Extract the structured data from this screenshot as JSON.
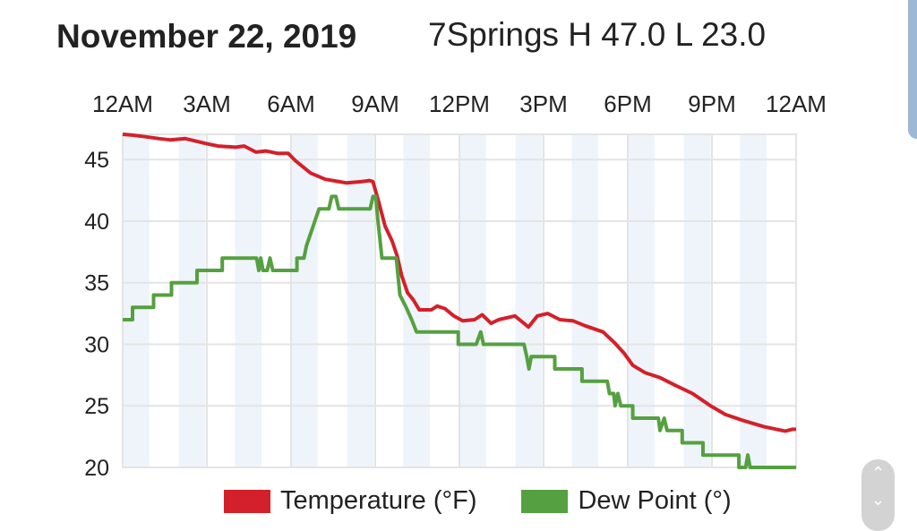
{
  "header": {
    "date": "November 22, 2019",
    "station": "7Springs H 47.0 L 23.0"
  },
  "colors": {
    "temperature": "#d4202a",
    "dew_point": "#55a040",
    "band": "#eef4fa",
    "grid": "#e4e4e4"
  },
  "chart_data": {
    "type": "line",
    "title": "November 22, 2019 7Springs H 47.0 L 23.0",
    "x_unit": "hours since midnight",
    "xlim": [
      0,
      24
    ],
    "ylim": [
      20,
      47.05
    ],
    "x_ticks": [
      {
        "value": 0,
        "label": "12AM"
      },
      {
        "value": 3,
        "label": "3AM"
      },
      {
        "value": 6,
        "label": "6AM"
      },
      {
        "value": 9,
        "label": "9AM"
      },
      {
        "value": 12,
        "label": "12PM"
      },
      {
        "value": 15,
        "label": "3PM"
      },
      {
        "value": 18,
        "label": "6PM"
      },
      {
        "value": 21,
        "label": "9PM"
      },
      {
        "value": 24,
        "label": "12AM"
      }
    ],
    "y_ticks": [
      20,
      25,
      30,
      35,
      40,
      45
    ],
    "x_tick_position": "top",
    "grid": true,
    "legend_position": "bottom",
    "series": [
      {
        "name": "Temperature (°F)",
        "color": "#d4202a",
        "points": [
          [
            0,
            47.05
          ],
          [
            0.3,
            47.0
          ],
          [
            0.84,
            46.85
          ],
          [
            1.3,
            46.7
          ],
          [
            1.69,
            46.6
          ],
          [
            2.23,
            46.7
          ],
          [
            2.97,
            46.3
          ],
          [
            3.4,
            46.1
          ],
          [
            4.02,
            46.0
          ],
          [
            4.33,
            46.1
          ],
          [
            4.75,
            45.6
          ],
          [
            5.1,
            45.7
          ],
          [
            5.52,
            45.5
          ],
          [
            5.9,
            45.5
          ],
          [
            6.16,
            44.9
          ],
          [
            6.7,
            43.9
          ],
          [
            7.22,
            43.4
          ],
          [
            7.98,
            43.1
          ],
          [
            8.5,
            43.2
          ],
          [
            8.8,
            43.3
          ],
          [
            8.92,
            43.2
          ],
          [
            9.13,
            41.5
          ],
          [
            9.35,
            39.6
          ],
          [
            9.6,
            38.4
          ],
          [
            9.78,
            37.2
          ],
          [
            9.94,
            35.6
          ],
          [
            10.15,
            34.2
          ],
          [
            10.36,
            33.6
          ],
          [
            10.57,
            32.8
          ],
          [
            11.0,
            32.8
          ],
          [
            11.21,
            33.1
          ],
          [
            11.48,
            32.9
          ],
          [
            11.8,
            32.3
          ],
          [
            12.12,
            31.9
          ],
          [
            12.54,
            32.0
          ],
          [
            12.81,
            32.4
          ],
          [
            13.13,
            31.7
          ],
          [
            13.4,
            32.0
          ],
          [
            13.98,
            32.3
          ],
          [
            14.14,
            32.0
          ],
          [
            14.46,
            31.4
          ],
          [
            14.78,
            32.3
          ],
          [
            15.15,
            32.5
          ],
          [
            15.58,
            32.0
          ],
          [
            16.05,
            31.9
          ],
          [
            16.48,
            31.5
          ],
          [
            17.12,
            31.0
          ],
          [
            17.54,
            30.1
          ],
          [
            17.86,
            29.3
          ],
          [
            18.18,
            28.3
          ],
          [
            18.61,
            27.7
          ],
          [
            19.14,
            27.3
          ],
          [
            19.67,
            26.7
          ],
          [
            20.31,
            26.0
          ],
          [
            20.95,
            25.0
          ],
          [
            21.48,
            24.3
          ],
          [
            22.12,
            23.8
          ],
          [
            22.86,
            23.3
          ],
          [
            23.61,
            22.95
          ],
          [
            23.87,
            23.1
          ],
          [
            24,
            23.1
          ]
        ]
      },
      {
        "name": "Dew Point (°)",
        "color": "#55a040",
        "points": [
          [
            0,
            32
          ],
          [
            0.35,
            32
          ],
          [
            0.35,
            33
          ],
          [
            1.1,
            33
          ],
          [
            1.1,
            34
          ],
          [
            1.74,
            34
          ],
          [
            1.74,
            35
          ],
          [
            2.65,
            35
          ],
          [
            2.65,
            36
          ],
          [
            3.55,
            36
          ],
          [
            3.55,
            37
          ],
          [
            4.77,
            37
          ],
          [
            4.85,
            36
          ],
          [
            4.92,
            37
          ],
          [
            5.0,
            36
          ],
          [
            5.15,
            36
          ],
          [
            5.25,
            37
          ],
          [
            5.35,
            36
          ],
          [
            6.21,
            36
          ],
          [
            6.21,
            37
          ],
          [
            6.46,
            37
          ],
          [
            6.55,
            38
          ],
          [
            6.7,
            39
          ],
          [
            6.85,
            40
          ],
          [
            7.0,
            41
          ],
          [
            7.35,
            41
          ],
          [
            7.45,
            42
          ],
          [
            7.6,
            42
          ],
          [
            7.7,
            41
          ],
          [
            8.82,
            41
          ],
          [
            8.92,
            42
          ],
          [
            9.02,
            42
          ],
          [
            9.1,
            40
          ],
          [
            9.24,
            37
          ],
          [
            9.75,
            37
          ],
          [
            9.88,
            34
          ],
          [
            10.1,
            33
          ],
          [
            10.3,
            32
          ],
          [
            10.47,
            31
          ],
          [
            11.96,
            31
          ],
          [
            11.96,
            30
          ],
          [
            12.6,
            30
          ],
          [
            12.76,
            31
          ],
          [
            12.86,
            30
          ],
          [
            14.3,
            30
          ],
          [
            14.4,
            29
          ],
          [
            14.48,
            28
          ],
          [
            14.56,
            29
          ],
          [
            15.4,
            29
          ],
          [
            15.4,
            28
          ],
          [
            16.37,
            28
          ],
          [
            16.37,
            27
          ],
          [
            17.27,
            27
          ],
          [
            17.35,
            26
          ],
          [
            17.5,
            26
          ],
          [
            17.55,
            25
          ],
          [
            17.65,
            26
          ],
          [
            17.75,
            25
          ],
          [
            17.9,
            25
          ],
          [
            18.18,
            25
          ],
          [
            18.18,
            24
          ],
          [
            19.09,
            24
          ],
          [
            19.15,
            23
          ],
          [
            19.3,
            24
          ],
          [
            19.4,
            23
          ],
          [
            19.94,
            23
          ],
          [
            19.94,
            22
          ],
          [
            20.68,
            22
          ],
          [
            20.68,
            21
          ],
          [
            21.96,
            21
          ],
          [
            21.96,
            20
          ],
          [
            22.2,
            20
          ],
          [
            22.28,
            21
          ],
          [
            22.36,
            20
          ],
          [
            24,
            20
          ]
        ]
      }
    ]
  },
  "legend": {
    "temperature": "Temperature (°F)",
    "dew_point": "Dew Point (°)"
  },
  "scroll": {
    "up": "⌃",
    "down": "⌄"
  }
}
